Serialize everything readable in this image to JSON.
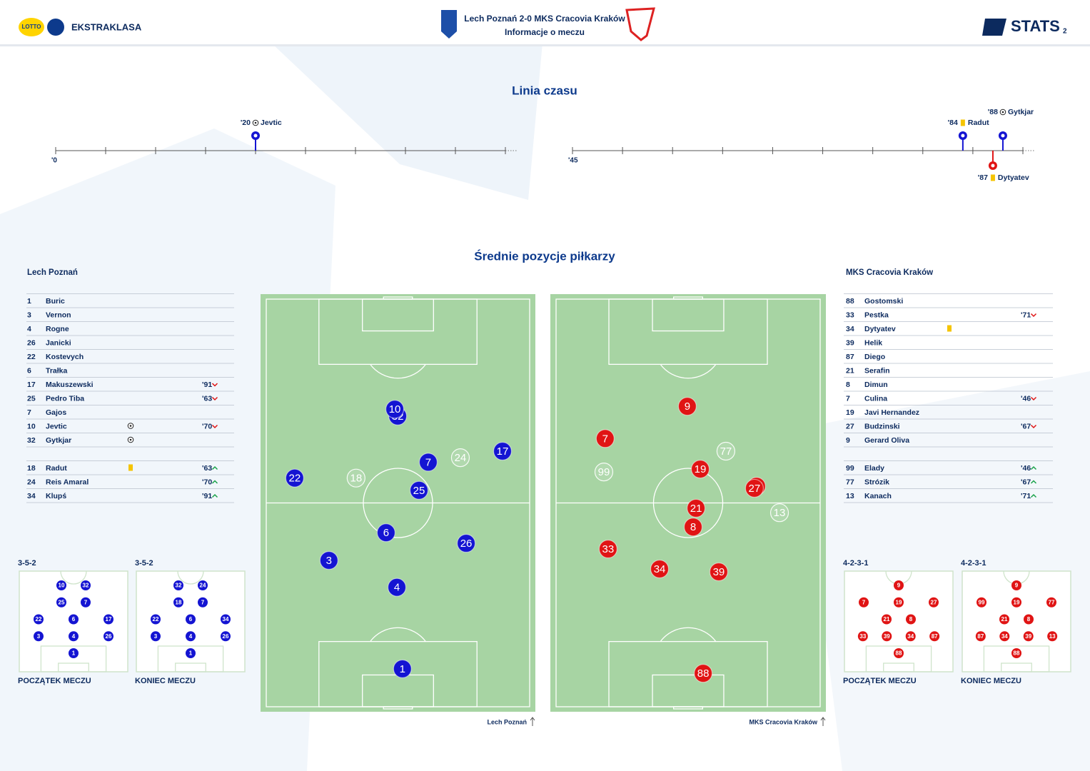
{
  "header": {
    "sponsor": "LOTTO",
    "league": "EKSTRAKLASA",
    "title": "Lech Poznań 2-0 MKS Cracovia Kraków",
    "subtitle": "Informacje o meczu",
    "brand": "STATS",
    "page": "2"
  },
  "timeline": {
    "title": "Linia czasu",
    "halves": [
      {
        "label": "'0",
        "ticks": [
          0,
          5,
          10,
          15,
          20,
          25,
          30,
          35,
          40,
          45
        ]
      },
      {
        "label": "'45",
        "ticks": [
          45,
          50,
          55,
          60,
          65,
          70,
          75,
          80,
          85,
          90
        ]
      }
    ],
    "events": [
      {
        "minute": 20,
        "label": "'20",
        "player": "Jevtic",
        "kind": "goal",
        "team": "home"
      },
      {
        "minute": 84,
        "label": "'84",
        "player": "Radut",
        "kind": "yellow",
        "team": "home"
      },
      {
        "minute": 88,
        "label": "'88",
        "player": "Gytkjar",
        "kind": "goal",
        "team": "home"
      },
      {
        "minute": 87,
        "label": "'87",
        "player": "Dytyatev",
        "kind": "yellow",
        "team": "away"
      }
    ]
  },
  "positions": {
    "title": "Średnie pozycje piłkarzy",
    "teams": [
      {
        "name": "Lech Poznań",
        "color": "#1414d2",
        "players": [
          {
            "number": 32,
            "x": 49.9,
            "y": 28.7,
            "sub": false
          },
          {
            "number": 10,
            "x": 48.8,
            "y": 27.0,
            "sub": false
          },
          {
            "number": 7,
            "x": 61.5,
            "y": 40.0,
            "sub": false
          },
          {
            "number": 24,
            "x": 73.7,
            "y": 38.9,
            "sub": true
          },
          {
            "number": 17,
            "x": 89.7,
            "y": 37.3,
            "sub": false
          },
          {
            "number": 22,
            "x": 10.8,
            "y": 43.9,
            "sub": false
          },
          {
            "number": 18,
            "x": 34.1,
            "y": 43.9,
            "sub": true
          },
          {
            "number": 25,
            "x": 58.0,
            "y": 46.9,
            "sub": false
          },
          {
            "number": 6,
            "x": 45.5,
            "y": 57.3,
            "sub": false
          },
          {
            "number": 26,
            "x": 75.9,
            "y": 59.9,
            "sub": false
          },
          {
            "number": 3,
            "x": 23.8,
            "y": 64.1,
            "sub": false
          },
          {
            "number": 4,
            "x": 49.6,
            "y": 70.7,
            "sub": false
          },
          {
            "number": 1,
            "x": 51.7,
            "y": 90.7,
            "sub": false
          }
        ]
      },
      {
        "name": "MKS Cracovia Kraków",
        "color": "#e01414",
        "players": [
          {
            "number": 9,
            "x": 49.7,
            "y": 26.3,
            "sub": false
          },
          {
            "number": 7,
            "x": 18.6,
            "y": 34.2,
            "sub": false
          },
          {
            "number": 77,
            "x": 64.3,
            "y": 37.3,
            "sub": true
          },
          {
            "number": 99,
            "x": 18.1,
            "y": 42.4,
            "sub": true
          },
          {
            "number": 19,
            "x": 54.6,
            "y": 41.7,
            "sub": false
          },
          {
            "number": 87,
            "x": 75.9,
            "y": 45.9,
            "sub": false
          },
          {
            "number": 27,
            "x": 75.1,
            "y": 46.4,
            "sub": false
          },
          {
            "number": 13,
            "x": 84.6,
            "y": 52.4,
            "sub": true
          },
          {
            "number": 21,
            "x": 53.0,
            "y": 51.3,
            "sub": false
          },
          {
            "number": 8,
            "x": 51.9,
            "y": 55.9,
            "sub": false
          },
          {
            "number": 33,
            "x": 19.7,
            "y": 61.3,
            "sub": false
          },
          {
            "number": 34,
            "x": 39.2,
            "y": 66.2,
            "sub": false
          },
          {
            "number": 39,
            "x": 61.6,
            "y": 66.9,
            "sub": false
          },
          {
            "number": 88,
            "x": 55.7,
            "y": 91.8,
            "sub": false
          }
        ]
      }
    ]
  },
  "lineups": [
    {
      "team": "Lech Poznań",
      "players": [
        {
          "number": 1,
          "name": "Buric"
        },
        {
          "number": 3,
          "name": "Vernon"
        },
        {
          "number": 4,
          "name": "Rogne"
        },
        {
          "number": 26,
          "name": "Janicki"
        },
        {
          "number": 22,
          "name": "Kostevych"
        },
        {
          "number": 6,
          "name": "Trałka"
        },
        {
          "number": 17,
          "name": "Makuszewski",
          "minute": "'91",
          "sub": "out"
        },
        {
          "number": 25,
          "name": "Pedro Tiba",
          "minute": "'63",
          "sub": "out"
        },
        {
          "number": 7,
          "name": "Gajos"
        },
        {
          "number": 10,
          "name": "Jevtic",
          "icon": "goal",
          "minute": "'70",
          "sub": "out"
        },
        {
          "number": 32,
          "name": "Gytkjar",
          "icon": "goal"
        }
      ],
      "subs": [
        {
          "number": 18,
          "name": "Radut",
          "icon": "yellow",
          "minute": "'63",
          "sub": "in"
        },
        {
          "number": 24,
          "name": "Reis Amaral",
          "minute": "'70",
          "sub": "in"
        },
        {
          "number": 34,
          "name": "Klupś",
          "minute": "'91",
          "sub": "in"
        }
      ]
    },
    {
      "team": "MKS Cracovia Kraków",
      "players": [
        {
          "number": 88,
          "name": "Gostomski"
        },
        {
          "number": 33,
          "name": "Pestka",
          "minute": "'71",
          "sub": "out"
        },
        {
          "number": 34,
          "name": "Dytyatev",
          "icon": "yellow"
        },
        {
          "number": 39,
          "name": "Helik"
        },
        {
          "number": 87,
          "name": "Diego"
        },
        {
          "number": 21,
          "name": "Serafin"
        },
        {
          "number": 8,
          "name": "Dimun"
        },
        {
          "number": 7,
          "name": "Culina",
          "minute": "'46",
          "sub": "out"
        },
        {
          "number": 19,
          "name": "Javi Hernandez"
        },
        {
          "number": 27,
          "name": "Budzinski",
          "minute": "'67",
          "sub": "out"
        },
        {
          "number": 9,
          "name": "Gerard Oliva"
        }
      ],
      "subs": [
        {
          "number": 99,
          "name": "Elady",
          "minute": "'46",
          "sub": "in"
        },
        {
          "number": 77,
          "name": "Strózik",
          "minute": "'67",
          "sub": "in"
        },
        {
          "number": 13,
          "name": "Kanach",
          "minute": "'71",
          "sub": "in"
        }
      ]
    }
  ],
  "formations": [
    {
      "label": "3-5-2",
      "caption": "POCZĄTEK MECZU",
      "color": "#1414d2",
      "rows": [
        [
          10,
          32
        ],
        [
          25,
          7
        ],
        [
          22,
          6,
          17
        ],
        [
          3,
          4,
          26
        ],
        [
          1
        ]
      ]
    },
    {
      "label": "3-5-2",
      "caption": "KONIEC MECZU",
      "color": "#1414d2",
      "rows": [
        [
          32,
          24
        ],
        [
          18,
          7
        ],
        [
          22,
          6,
          34
        ],
        [
          3,
          4,
          26
        ],
        [
          1
        ]
      ]
    },
    {
      "label": "4-2-3-1",
      "caption": "POCZĄTEK MECZU",
      "color": "#e01414",
      "rows": [
        [
          9
        ],
        [
          7,
          19,
          27
        ],
        [
          21,
          8
        ],
        [
          33,
          39,
          34,
          87
        ],
        [
          88
        ]
      ]
    },
    {
      "label": "4-2-3-1",
      "caption": "KONIEC MECZU",
      "color": "#e01414",
      "rows": [
        [
          9
        ],
        [
          99,
          19,
          77
        ],
        [
          21,
          8
        ],
        [
          87,
          34,
          39,
          13
        ],
        [
          88
        ]
      ]
    }
  ]
}
